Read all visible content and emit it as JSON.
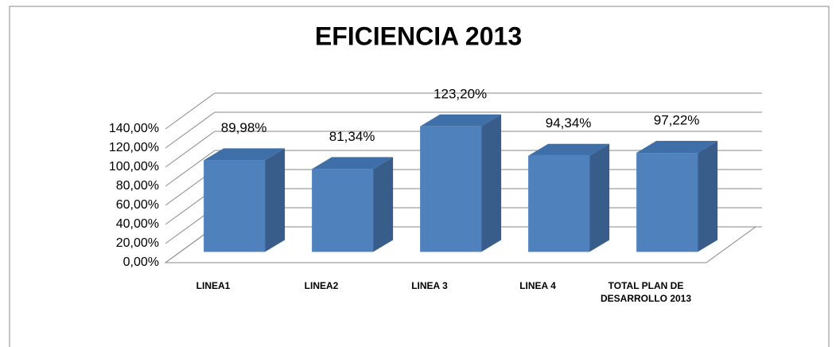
{
  "chart_data": {
    "type": "bar3d",
    "title": "EFICIENCIA 2013",
    "categories": [
      "LINEA1",
      "LINEA2",
      "LINEA 3",
      "LINEA 4",
      "TOTAL PLAN DE DESARROLLO 2013"
    ],
    "values": [
      89.98,
      81.34,
      123.2,
      94.34,
      97.22
    ],
    "value_labels": [
      "89,98%",
      "81,34%",
      "123,20%",
      "94,34%",
      "97,22%"
    ],
    "color": "#4f81bd",
    "ylim": [
      0,
      140
    ],
    "yticks": [
      {
        "value": 0,
        "label": "0,00%"
      },
      {
        "value": 20,
        "label": "20,00%"
      },
      {
        "value": 40,
        "label": "40,00%"
      },
      {
        "value": 60,
        "label": "60,00%"
      },
      {
        "value": 80,
        "label": "80,00%"
      },
      {
        "value": 100,
        "label": "100,00%"
      },
      {
        "value": 120,
        "label": "120,00%"
      },
      {
        "value": 140,
        "label": "140,00%"
      }
    ],
    "grid": true
  }
}
